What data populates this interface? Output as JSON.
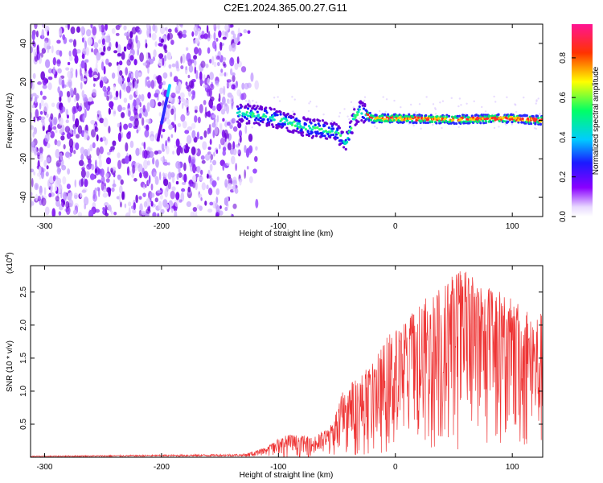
{
  "title": "C2E1.2024.365.00.27.G11",
  "colors": {
    "snr_line": "#ee3333",
    "colormap": [
      "#ffffff",
      "#7a00e0",
      "#1a1aff",
      "#00ccff",
      "#00ff66",
      "#ffff00",
      "#ff0000",
      "#ff1493"
    ]
  },
  "chart_data": [
    {
      "type": "heatmap",
      "name": "spectrogram",
      "xlabel": "Height of straight line (km)",
      "ylabel": "Frequency (Hz)",
      "xlim": [
        -312,
        126
      ],
      "ylim": [
        -50,
        50
      ],
      "xticks": [
        -300,
        -200,
        -100,
        0,
        100
      ],
      "xtick_labels": [
        "-300",
        "-200",
        "-100",
        "0",
        "100"
      ],
      "yticks": [
        -40,
        -20,
        0,
        20,
        40
      ],
      "ytick_labels": [
        "-40",
        "-20",
        "0",
        "20",
        "40"
      ],
      "noise_region_x": [
        -312,
        -132
      ],
      "signal_band": [
        {
          "x": -135,
          "f": 4
        },
        {
          "x": -110,
          "f": 2
        },
        {
          "x": -90,
          "f": -1
        },
        {
          "x": -75,
          "f": -4
        },
        {
          "x": -62,
          "f": -5
        },
        {
          "x": -50,
          "f": -6
        },
        {
          "x": -42,
          "f": -12
        },
        {
          "x": -35,
          "f": 2
        },
        {
          "x": -30,
          "f": 5
        },
        {
          "x": -25,
          "f": 3
        },
        {
          "x": -20,
          "f": 1
        },
        {
          "x": 0,
          "f": 1
        },
        {
          "x": 50,
          "f": 0.5
        },
        {
          "x": 100,
          "f": 1
        },
        {
          "x": 126,
          "f": 0
        }
      ],
      "colorbar": {
        "label": "Normalized spectral amplitude",
        "range": [
          0,
          0.97
        ],
        "ticks": [
          0.0,
          0.2,
          0.4,
          0.6,
          0.8
        ],
        "tick_labels": [
          "0.0",
          "0.2",
          "0.4",
          "0.6",
          "0.8"
        ]
      }
    },
    {
      "type": "line",
      "name": "snr",
      "xlabel": "Height of straight line (km)",
      "ylabel": "SNR (10 * v/v)",
      "scale_label": "(x10",
      "scale_exponent": "4",
      "scale_close": ")",
      "xlim": [
        -312,
        126
      ],
      "ylim": [
        0,
        2.9
      ],
      "xticks": [
        -300,
        -200,
        -100,
        0,
        100
      ],
      "xtick_labels": [
        "-300",
        "-200",
        "-100",
        "0",
        "100"
      ],
      "yticks": [
        0.5,
        1.0,
        1.5,
        2.0,
        2.5
      ],
      "ytick_labels": [
        "0.5",
        "1.0",
        "1.5",
        "2.0",
        "2.5"
      ],
      "envelope": [
        {
          "x": -312,
          "y": 0.02
        },
        {
          "x": -130,
          "y": 0.05
        },
        {
          "x": -110,
          "y": 0.15
        },
        {
          "x": -100,
          "y": 0.3
        },
        {
          "x": -90,
          "y": 0.35
        },
        {
          "x": -70,
          "y": 0.3
        },
        {
          "x": -55,
          "y": 0.5
        },
        {
          "x": -45,
          "y": 1.0
        },
        {
          "x": -35,
          "y": 1.2
        },
        {
          "x": -20,
          "y": 1.4
        },
        {
          "x": -5,
          "y": 1.9
        },
        {
          "x": 10,
          "y": 2.1
        },
        {
          "x": 25,
          "y": 2.4
        },
        {
          "x": 45,
          "y": 2.7
        },
        {
          "x": 55,
          "y": 2.9
        },
        {
          "x": 70,
          "y": 2.7
        },
        {
          "x": 90,
          "y": 2.5
        },
        {
          "x": 110,
          "y": 2.3
        },
        {
          "x": 126,
          "y": 2.2
        }
      ]
    }
  ]
}
